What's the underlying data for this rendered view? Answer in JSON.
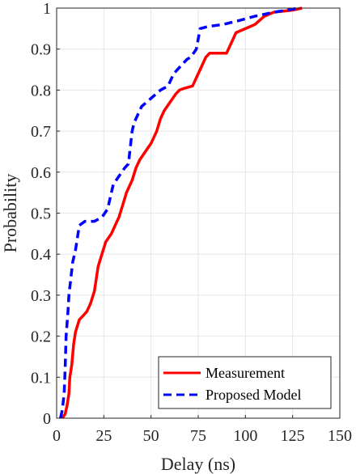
{
  "chart_data": {
    "type": "line",
    "title": "",
    "xlabel": "Delay (ns)",
    "ylabel": "Probability",
    "xlim": [
      0,
      150
    ],
    "ylim": [
      0,
      1
    ],
    "x_ticks": [
      0,
      25,
      50,
      75,
      100,
      125,
      150
    ],
    "y_ticks": [
      0,
      0.1,
      0.2,
      0.3,
      0.4,
      0.5,
      0.6,
      0.7,
      0.8,
      0.9,
      1
    ],
    "grid": true,
    "legend_position": "bottom-right",
    "series": [
      {
        "name": "Measurement",
        "color": "#ff0000",
        "style": "solid",
        "points": [
          [
            3,
            0
          ],
          [
            4.5,
            0.01
          ],
          [
            5.5,
            0.03
          ],
          [
            6.5,
            0.06
          ],
          [
            7,
            0.1
          ],
          [
            8,
            0.13
          ],
          [
            9,
            0.18
          ],
          [
            10,
            0.21
          ],
          [
            12,
            0.24
          ],
          [
            14,
            0.25
          ],
          [
            16,
            0.26
          ],
          [
            18,
            0.28
          ],
          [
            20,
            0.31
          ],
          [
            21,
            0.34
          ],
          [
            22,
            0.37
          ],
          [
            24,
            0.4
          ],
          [
            26,
            0.43
          ],
          [
            29,
            0.45
          ],
          [
            31,
            0.47
          ],
          [
            33,
            0.49
          ],
          [
            35,
            0.52
          ],
          [
            37,
            0.55
          ],
          [
            40,
            0.58
          ],
          [
            42,
            0.61
          ],
          [
            44,
            0.63
          ],
          [
            47,
            0.65
          ],
          [
            50,
            0.67
          ],
          [
            53,
            0.7
          ],
          [
            55,
            0.73
          ],
          [
            57,
            0.75
          ],
          [
            60,
            0.77
          ],
          [
            63,
            0.79
          ],
          [
            65,
            0.8
          ],
          [
            68,
            0.805
          ],
          [
            72,
            0.81
          ],
          [
            75,
            0.84
          ],
          [
            77,
            0.86
          ],
          [
            79,
            0.88
          ],
          [
            81,
            0.89
          ],
          [
            85,
            0.89
          ],
          [
            90,
            0.89
          ],
          [
            93,
            0.92
          ],
          [
            95,
            0.94
          ],
          [
            100,
            0.95
          ],
          [
            105,
            0.96
          ],
          [
            110,
            0.98
          ],
          [
            115,
            0.99
          ],
          [
            125,
            0.995
          ],
          [
            130,
            1.0
          ]
        ]
      },
      {
        "name": "Proposed Model",
        "color": "#0000ff",
        "style": "dashed",
        "points": [
          [
            2,
            0
          ],
          [
            3,
            0.02
          ],
          [
            4,
            0.06
          ],
          [
            4.5,
            0.12
          ],
          [
            5,
            0.2
          ],
          [
            6,
            0.26
          ],
          [
            6.5,
            0.3
          ],
          [
            7.5,
            0.34
          ],
          [
            8.5,
            0.38
          ],
          [
            10,
            0.41
          ],
          [
            11,
            0.44
          ],
          [
            12,
            0.47
          ],
          [
            15,
            0.48
          ],
          [
            20,
            0.48
          ],
          [
            24,
            0.49
          ],
          [
            27,
            0.51
          ],
          [
            29,
            0.55
          ],
          [
            30,
            0.57
          ],
          [
            33,
            0.59
          ],
          [
            36,
            0.61
          ],
          [
            38,
            0.62
          ],
          [
            39,
            0.66
          ],
          [
            40,
            0.7
          ],
          [
            41,
            0.72
          ],
          [
            43,
            0.74
          ],
          [
            45,
            0.76
          ],
          [
            50,
            0.78
          ],
          [
            55,
            0.8
          ],
          [
            59,
            0.81
          ],
          [
            62,
            0.84
          ],
          [
            66,
            0.86
          ],
          [
            69,
            0.875
          ],
          [
            71,
            0.88
          ],
          [
            74,
            0.9
          ],
          [
            76,
            0.95
          ],
          [
            80,
            0.955
          ],
          [
            88,
            0.96
          ],
          [
            97,
            0.97
          ],
          [
            105,
            0.98
          ],
          [
            115,
            0.99
          ],
          [
            122,
            0.995
          ],
          [
            128,
            1.0
          ]
        ]
      }
    ]
  }
}
